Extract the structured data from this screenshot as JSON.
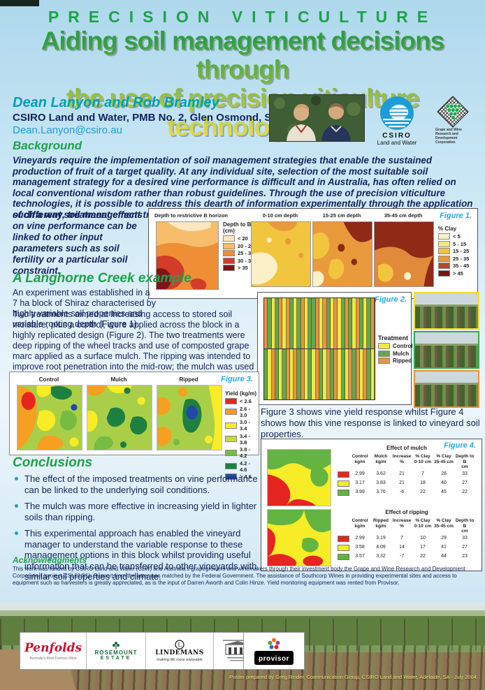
{
  "poster": {
    "eyebrow": "PRECISION  VITICULTURE",
    "title1": "Aiding soil management decisions through",
    "title2": "the use of precision viticulture technologies",
    "authors": "Dean Lanyon and Rob Bramley",
    "affiliation": "CSIRO Land and Water, PMB No. 2, Glen Osmond, SA 5064.",
    "email": "Dean.Lanyon@csiro.au"
  },
  "logos": {
    "csiro": {
      "line1": "CSIRO",
      "line2": "Land and Water"
    },
    "gwrdc": {
      "line1": "Grape and Wine",
      "line2": "Research and",
      "line3": "Development Corporation"
    }
  },
  "background": {
    "heading": "Background",
    "para1": "Vineyards require the implementation of soil management strategies that enable the sustained production of fruit of a target quality. At any individual site, selection of the most suitable soil management strategy for a desired vine performance is difficult and in Australia, has often relied on local conventional wisdom rather than robust guidelines. Through the use of precision viticulture technologies, it is possible to address this dearth of information experimentally through the application of different soil management treatments across entire vineyard blocks. In",
    "para2": "such a way, treatment effects on vine performance can be linked to other input parameters such as soil fertility or a particular soil constraint."
  },
  "example": {
    "heading": "A Langhorne Creek example",
    "para1": "An experiment was established in a 7 ha block of Shiraz characterised by highly variable soil properties and variable rooting depth (Figure 1).",
    "para2": "Two treatments aimed at increasing access to stored soil moisture, plus a control, were applied across the block in a highly replicated design (Figure 2). The two treatments were deep ripping of the wheel tracks and use of composted grape marc applied as a surface mulch. The ripping was intended to improve root penetration into the mid-row; the mulch was used to suppress soil water evaporation.",
    "caption": "Figure 3 shows vine yield response whilst Figure 4 shows how this vine response is linked to vineyard soil properties."
  },
  "figure1": {
    "label": "Figure 1.",
    "map1_title": "Depth to restrictive B horizon",
    "depth_legend_title": "Depth to B",
    "depth_legend_subtitle": "(cm)",
    "depth_legend": [
      {
        "label": "< 20",
        "color": "#fbe7c0"
      },
      {
        "label": "20 - 25",
        "color": "#f7bd6b"
      },
      {
        "label": "25 - 30",
        "color": "#ef8f35"
      },
      {
        "label": "30 - 35",
        "color": "#d23c28"
      },
      {
        "label": "> 35",
        "color": "#7e1416"
      }
    ],
    "map_titles": [
      "0-10 cm depth",
      "15-25 cm depth",
      "35-45 cm depth"
    ],
    "clay_legend_title": "% Clay",
    "clay_legend": [
      {
        "label": "< 5",
        "color": "#fbf0c8"
      },
      {
        "label": "5 - 15",
        "color": "#f7e586"
      },
      {
        "label": "15 - 25",
        "color": "#f2c53e"
      },
      {
        "label": "25 - 35",
        "color": "#e89a3c"
      },
      {
        "label": "35 - 45",
        "color": "#b04a26"
      },
      {
        "label": "> 45",
        "color": "#7e1012"
      }
    ]
  },
  "figure2": {
    "label": "Figure 2.",
    "legend_title": "Treatment",
    "legend": [
      {
        "label": "Control",
        "color": "#f2e648"
      },
      {
        "label": "Mulch",
        "color": "#63a84f"
      },
      {
        "label": "Ripped",
        "color": "#e69445"
      }
    ],
    "stripe_rows": [
      "OGYGOYOGYGOYGGOYOGYOYGOGYOGYGO",
      "GYOGYGOYOGOYGYOGYOGOYGYOGOYOGY"
    ]
  },
  "figure3": {
    "label": "Figure 3.",
    "map_titles": [
      "Control",
      "Mulch",
      "Ripped"
    ],
    "legend_title": "Yield (kg/m)",
    "legend": [
      {
        "label": "< 2.6",
        "color": "#e52620"
      },
      {
        "label": "2.6 - 3.0",
        "color": "#f59d20"
      },
      {
        "label": "3.0 - 3.4",
        "color": "#f7ec25"
      },
      {
        "label": "3.4 - 3.8",
        "color": "#c4d943"
      },
      {
        "label": "3.8 - 4.2",
        "color": "#77bb43"
      },
      {
        "label": "4.2 - 4.6",
        "color": "#1e8040"
      },
      {
        "label": "> 4.6",
        "color": "#2149a8"
      }
    ]
  },
  "figure4": {
    "label": "Figure 4.",
    "tables": [
      {
        "title": "Effect of mulch",
        "headers": [
          {
            "line1": "Control",
            "line2": "kg/m"
          },
          {
            "line1": "Mulch",
            "line2": "kg/m"
          },
          {
            "line1": "Increase",
            "line2": "%"
          },
          {
            "line1": "% Clay",
            "line2": "0-10 cm"
          },
          {
            "line1": "% Clay",
            "line2": "35-45 cm"
          },
          {
            "line1": "Depth to B",
            "line2": "cm"
          }
        ],
        "rows": [
          {
            "color": "#e52620",
            "values": [
              "2.99",
              "3.62",
              "21",
              "7",
              "28",
              "33"
            ]
          },
          {
            "color": "#f7ec25",
            "values": [
              "3.17",
              "3.83",
              "21",
              "18",
              "40",
              "27"
            ]
          },
          {
            "color": "#63b441",
            "values": [
              "3.99",
              "3.76",
              "-6",
              "22",
              "45",
              "22"
            ]
          }
        ]
      },
      {
        "title": "Effect of ripping",
        "headers": [
          {
            "line1": "Control",
            "line2": "kg/m"
          },
          {
            "line1": "Ripped",
            "line2": "kg/m"
          },
          {
            "line1": "Increase",
            "line2": "%"
          },
          {
            "line1": "% Clay",
            "line2": "0-10 cm"
          },
          {
            "line1": "% Clay",
            "line2": "35-45 cm"
          },
          {
            "line1": "Depth to B",
            "line2": "cm"
          }
        ],
        "rows": [
          {
            "color": "#e52620",
            "values": [
              "2.99",
              "3.19",
              "7",
              "10",
              "29",
              "33"
            ]
          },
          {
            "color": "#f7ec25",
            "values": [
              "3.58",
              "4.09",
              "14",
              "17",
              "41",
              "27"
            ]
          },
          {
            "color": "#63b441",
            "values": [
              "3.57",
              "3.32",
              "-7",
              "22",
              "44",
              "23"
            ]
          }
        ]
      }
    ]
  },
  "conclusions": {
    "heading": "Conclusions",
    "bullets": [
      "The effect of the imposed treatments on vine performance can be linked to the underlying soil conditions.",
      "The mulch was more effective in increasing yield in lighter soils than ripping.",
      "This experimental approach has enabled the vineyard manager to understand the variable response to these management options in this block whilst providing useful information that can be transferred to other vineyards with similar soil properties and climate."
    ]
  },
  "acknowledgments": {
    "heading": "Acknowledgments",
    "text": "This work was funded by CSIRO Land and Water (CLW) and Australia's grapegrowers and winemakers through their investment body the Grape and Wine Research and Development Corporation (project CSL01/01). Support from the latter was matched by the Federal Government. The assistance of Southcorp Wines in providing experimental sites and access to equipment such as harvesters is greatly appreciated, as is the input of Darren Aworth and Colin Hinze. Yield monitoring equipment was rented from Provisor."
  },
  "footer": {
    "penfolds": {
      "name": "Penfolds",
      "caption": "Australia's Most Famous Wine"
    },
    "rosemount": {
      "line1": "ROSEMOUNT",
      "line2": "ESTATE"
    },
    "lindemans": {
      "name": "LINDEMANS",
      "tagline": "making life more enjoyable"
    },
    "provisor": {
      "name": "provisor"
    },
    "credit": "Poster prepared by Greg Rinder, Communication Group, CSIRO Land and Water, Adelaide, SA - July 2004."
  }
}
